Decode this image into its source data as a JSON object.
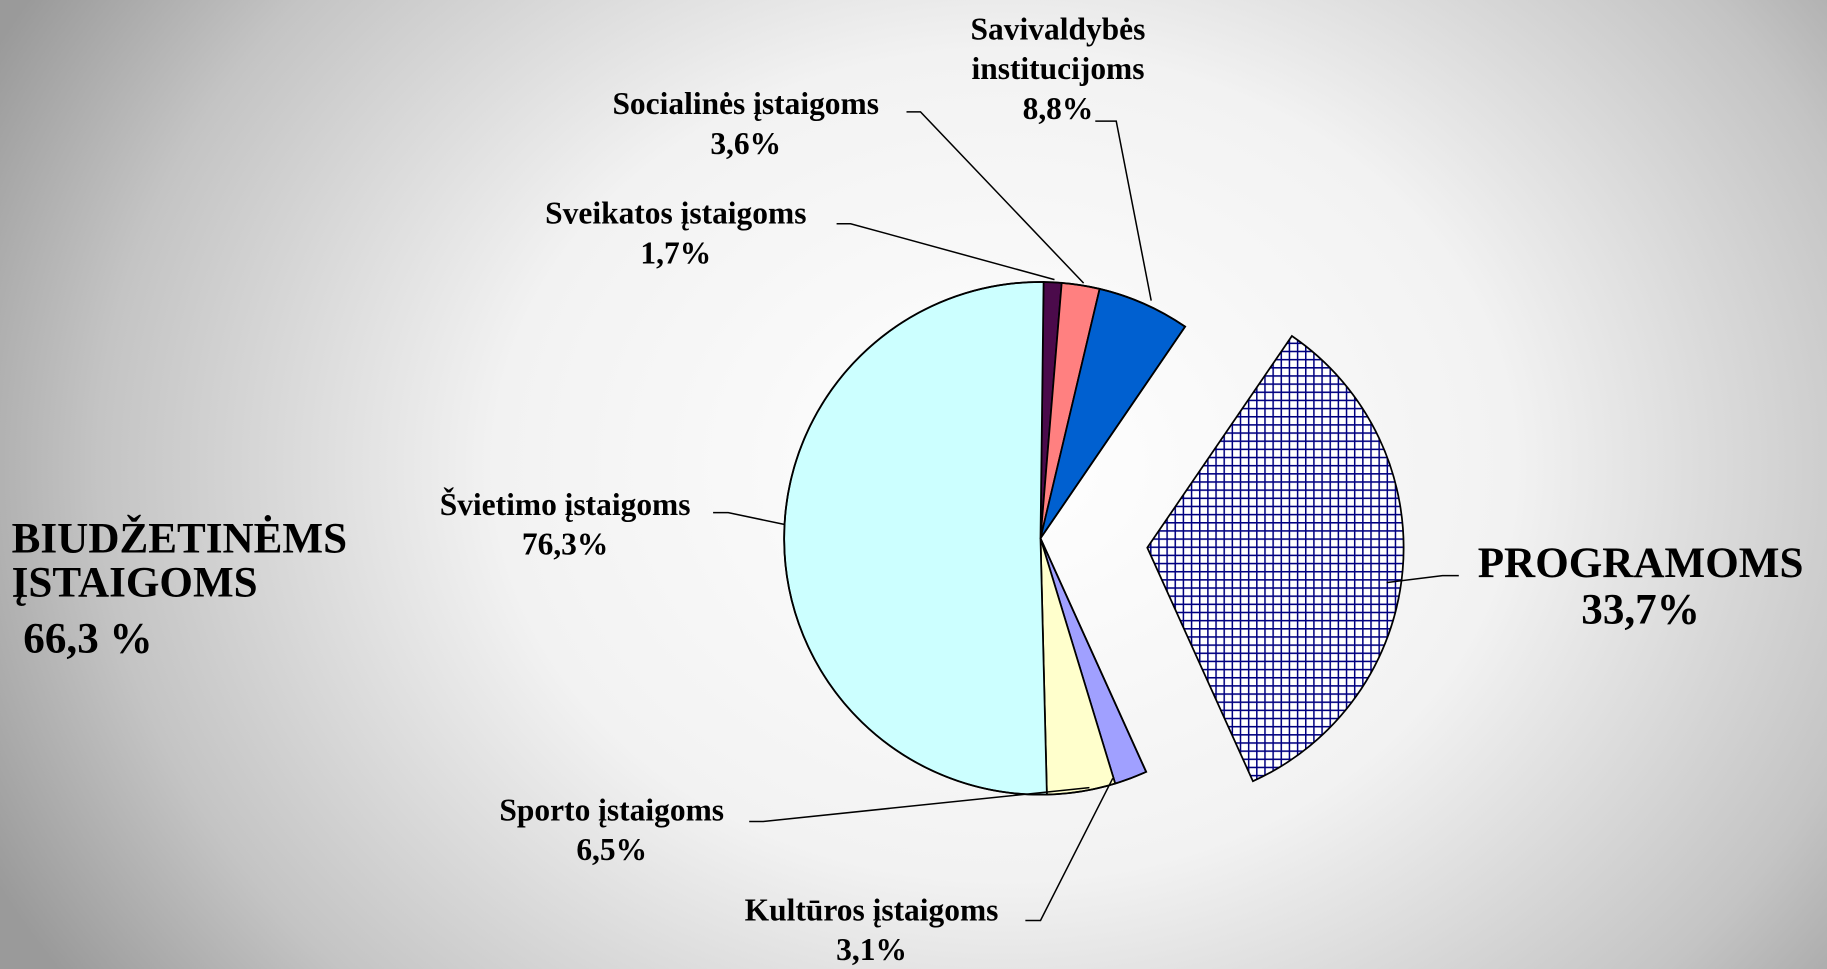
{
  "chart_data": {
    "type": "pie",
    "parts": {
      "categories": [
        "BIUDŽETINĖMS ĮSTAIGOMS",
        "PROGRAMOMS"
      ],
      "values": [
        66.3,
        33.7
      ],
      "value_labels": [
        "66,3 %",
        "33,7%"
      ],
      "colors": [
        "none",
        "#000080"
      ]
    },
    "categories": [
      "Sveikatos įstaigoms",
      "Socialinės įstaigoms",
      "Savivaldybės institucijoms",
      "Kultūros įstaigoms",
      "Sporto įstaigoms",
      "Švietimo įstaigoms"
    ],
    "values": [
      1.7,
      3.6,
      8.8,
      3.1,
      6.5,
      76.3
    ],
    "value_labels": [
      "1,7%",
      "3,6%",
      "8,8%",
      "3,1%",
      "6,5%",
      "76,3%"
    ],
    "colors": [
      "#4b0a4b",
      "#ff8080",
      "#0060d0",
      "#a0a0ff",
      "#ffffcc",
      "#ccffff"
    ]
  }
}
